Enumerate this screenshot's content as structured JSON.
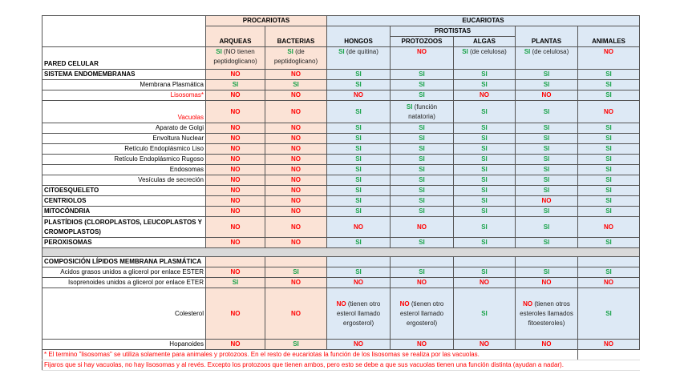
{
  "headers": {
    "procariotas": "PROCARIOTAS",
    "eucariotas": "EUCARIOTAS",
    "protistas": "PROTISTAS",
    "cols": [
      "ARQUEAS",
      "BACTERIAS",
      "HONGOS",
      "PROTOZOOS",
      "ALGAS",
      "PLANTAS",
      "ANIMALES"
    ]
  },
  "rows": [
    {
      "label": "PARED CELULAR",
      "style": "b",
      "h": 28,
      "cells": [
        {
          "v": "SI",
          "note": "(NO tienen peptidoglicano)"
        },
        {
          "v": "SI",
          "note": "(de peptidoglicano)"
        },
        {
          "v": "SI",
          "note": "(de quitina)"
        },
        {
          "v": "NO"
        },
        {
          "v": "SI",
          "note": "(de celulosa)"
        },
        {
          "v": "SI",
          "note": "(de celulosa)"
        },
        {
          "v": "NO"
        }
      ]
    },
    {
      "label": "SISTEMA ENDOMEMBRANAS",
      "style": "b",
      "cells": [
        "NO",
        "NO",
        "SI",
        "SI",
        "SI",
        "SI",
        "SI"
      ]
    },
    {
      "label": "Membrana Plasmática",
      "style": "r",
      "cells": [
        "SI",
        "SI",
        "SI",
        "SI",
        "SI",
        "SI",
        "SI"
      ]
    },
    {
      "label": "Lisosomas*",
      "style": "r red",
      "cells": [
        "NO",
        "NO",
        "NO",
        "SI",
        "NO",
        "NO",
        "SI"
      ]
    },
    {
      "label": "Vacuolas",
      "style": "r red",
      "h": 28,
      "cells": [
        "NO",
        "NO",
        "SI",
        {
          "v": "SI",
          "note": "(función natatoria)"
        },
        "SI",
        "SI",
        "NO"
      ]
    },
    {
      "label": "Aparato de Golgi",
      "style": "r",
      "cells": [
        "NO",
        "NO",
        "SI",
        "SI",
        "SI",
        "SI",
        "SI"
      ]
    },
    {
      "label": "Envoltura Nuclear",
      "style": "r",
      "cells": [
        "NO",
        "NO",
        "SI",
        "SI",
        "SI",
        "SI",
        "SI"
      ]
    },
    {
      "label": "Retículo Endoplásmico Liso",
      "style": "r",
      "cells": [
        "NO",
        "NO",
        "SI",
        "SI",
        "SI",
        "SI",
        "SI"
      ]
    },
    {
      "label": "Retículo Endoplásmico Rugoso",
      "style": "r",
      "cells": [
        "NO",
        "NO",
        "SI",
        "SI",
        "SI",
        "SI",
        "SI"
      ]
    },
    {
      "label": "Endosomas",
      "style": "r",
      "cells": [
        "NO",
        "NO",
        "SI",
        "SI",
        "SI",
        "SI",
        "SI"
      ]
    },
    {
      "label": "Vesículas de secreción",
      "style": "r",
      "cells": [
        "NO",
        "NO",
        "SI",
        "SI",
        "SI",
        "SI",
        "SI"
      ]
    },
    {
      "label": "CITOESQUELETO",
      "style": "b",
      "cells": [
        "NO",
        "NO",
        "SI",
        "SI",
        "SI",
        "SI",
        "SI"
      ]
    },
    {
      "label": "CENTRIOLOS",
      "style": "b",
      "cells": [
        "NO",
        "NO",
        "SI",
        "SI",
        "SI",
        "NO",
        "SI"
      ]
    },
    {
      "label": "MITOCÓNDRIA",
      "style": "b",
      "cells": [
        "NO",
        "NO",
        "SI",
        "SI",
        "SI",
        "SI",
        "SI"
      ]
    },
    {
      "label": "PLASTÍDIOS (CLOROPLASTOS, LEUCOPLASTOS Y CROMOPLASTOS)",
      "style": "b wrap",
      "h": 26,
      "cells": [
        "NO",
        "NO",
        "NO",
        "NO",
        "SI",
        "SI",
        "NO"
      ]
    },
    {
      "label": "PEROXISOMAS",
      "style": "b",
      "cells": [
        "NO",
        "NO",
        "SI",
        "SI",
        "SI",
        "SI",
        "SI"
      ]
    },
    {
      "sep": true
    },
    {
      "label": "COMPOSICIÓN LÍPIDOS MEMBRANA PLASMÁTICA",
      "style": "b",
      "cells": [
        "",
        "",
        "",
        "",
        "",
        "",
        ""
      ]
    },
    {
      "label": "Acidos grasos unidos a glicerol por enlace ESTER",
      "style": "r",
      "cells": [
        "NO",
        "SI",
        "SI",
        "SI",
        "SI",
        "SI",
        "SI"
      ]
    },
    {
      "label": "Isoprenoides unidos a glicerol por enlace ETER",
      "style": "r",
      "cells": [
        "SI",
        "NO",
        "NO",
        "NO",
        "NO",
        "NO",
        "NO"
      ]
    },
    {
      "label": "Colesterol",
      "style": "r",
      "h": 64,
      "cells": [
        "NO",
        "NO",
        {
          "v": "NO",
          "note": "(tienen otro esterol llamado ergosterol)"
        },
        {
          "v": "NO",
          "note": "(tienen otro esterol llamado ergosterol)"
        },
        "SI",
        {
          "v": "NO",
          "note": "(tienen otros esteroles llamados fitoesteroles)"
        },
        "SI"
      ]
    },
    {
      "label": "Hopanoides",
      "style": "r",
      "cells": [
        "NO",
        "SI",
        "NO",
        "NO",
        "NO",
        "NO",
        "NO"
      ]
    }
  ],
  "notes": [
    "* El termino \"lisosomas\" se utiliza solamente para animales y protozoos. En el resto de eucariotas la función de los lisosomas se realiza por las vacuolas.",
    "Fijaros que si hay vacuolas, no hay lisosomas y al revés. Excepto los protozoos que tienen ambos, pero esto se debe a que sus vacuolas tienen una función distinta (ayudan a nadar)."
  ],
  "colors": {
    "si": "#1aa34a",
    "no": "#ff0000",
    "procariotas_bg": "#fbe3d6",
    "eucariotas_bg": "#dde9f5"
  }
}
